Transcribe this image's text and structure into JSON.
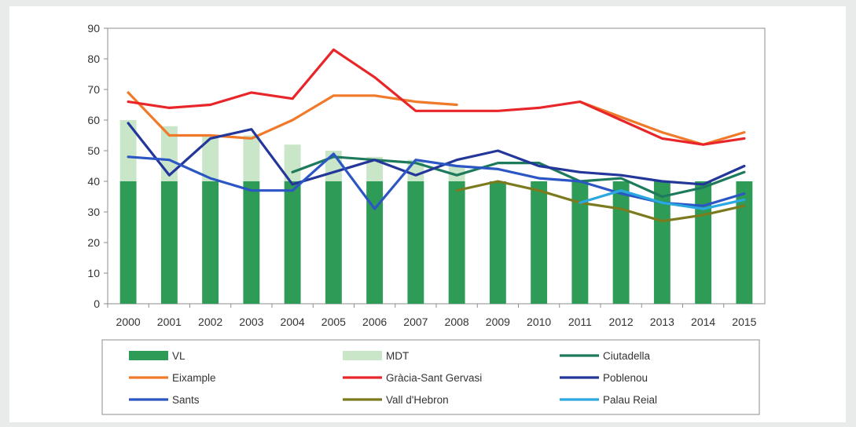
{
  "chart_data": {
    "type": "bar",
    "title": "",
    "xlabel": "",
    "ylabel": "",
    "ylim": [
      0,
      90
    ],
    "yticks": [
      0,
      10,
      20,
      30,
      40,
      50,
      60,
      70,
      80,
      90
    ],
    "grid": false,
    "legend_position": "bottom",
    "categories": [
      "2000",
      "2001",
      "2002",
      "2003",
      "2004",
      "2005",
      "2006",
      "2007",
      "2008",
      "2009",
      "2010",
      "2011",
      "2012",
      "2013",
      "2014",
      "2015"
    ],
    "bar_series": [
      {
        "name": "VL",
        "color": "#2e9b57",
        "values": [
          40,
          40,
          40,
          40,
          40,
          40,
          40,
          40,
          40,
          40,
          40,
          40,
          40,
          40,
          40,
          40
        ]
      },
      {
        "name": "MDT",
        "color": "#c9e6c9",
        "values": [
          60,
          58,
          55,
          55,
          52,
          50,
          48,
          47,
          45,
          null,
          null,
          null,
          null,
          null,
          null,
          null
        ]
      }
    ],
    "line_series": [
      {
        "name": "Ciutadella",
        "color": "#1e7a5c",
        "values": [
          null,
          null,
          null,
          null,
          43,
          48,
          47,
          46,
          42,
          46,
          46,
          40,
          41,
          35,
          38,
          43
        ]
      },
      {
        "name": "Eixample",
        "color": "#f07a2a",
        "values": [
          69,
          55,
          55,
          54,
          60,
          68,
          68,
          66,
          65,
          null,
          null,
          66,
          61,
          56,
          52,
          56
        ]
      },
      {
        "name": "Gràcia-Sant Gervasi",
        "color": "#e8262a",
        "values": [
          66,
          64,
          65,
          69,
          67,
          83,
          74,
          63,
          63,
          63,
          64,
          66,
          60,
          54,
          52,
          54
        ]
      },
      {
        "name": "Poblenou",
        "color": "#23379a",
        "values": [
          59,
          42,
          54,
          57,
          39,
          43,
          47,
          42,
          47,
          50,
          45,
          43,
          42,
          40,
          39,
          45
        ]
      },
      {
        "name": "Sants",
        "color": "#2b56c4",
        "values": [
          48,
          47,
          41,
          37,
          37,
          49,
          31,
          47,
          45,
          44,
          41,
          40,
          36,
          33,
          32,
          36
        ]
      },
      {
        "name": "Vall d'Hebron",
        "color": "#7b7a1e",
        "values": [
          null,
          null,
          null,
          null,
          null,
          null,
          null,
          null,
          37,
          40,
          37,
          33,
          31,
          27,
          29,
          32
        ]
      },
      {
        "name": "Palau Reial",
        "color": "#2aa8e0",
        "values": [
          null,
          null,
          null,
          null,
          null,
          null,
          null,
          null,
          null,
          null,
          null,
          33,
          37,
          33,
          31,
          34
        ]
      }
    ]
  },
  "legend": {
    "items": [
      "VL",
      "MDT",
      "Ciutadella",
      "Eixample",
      "Gràcia-Sant Gervasi",
      "Poblenou",
      "Sants",
      "Vall d'Hebron",
      "Palau Reial"
    ]
  }
}
